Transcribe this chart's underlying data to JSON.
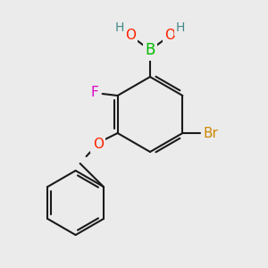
{
  "bg_color": "#ebebeb",
  "bond_color": "#1a1a1a",
  "bond_width": 1.5,
  "atom_colors": {
    "B": "#00bb00",
    "O": "#ff2200",
    "H": "#448888",
    "F": "#dd00cc",
    "Br": "#cc8800",
    "C": "#1a1a1a"
  },
  "font_size_atom": 11,
  "font_size_H": 10,
  "font_size_Br": 11
}
